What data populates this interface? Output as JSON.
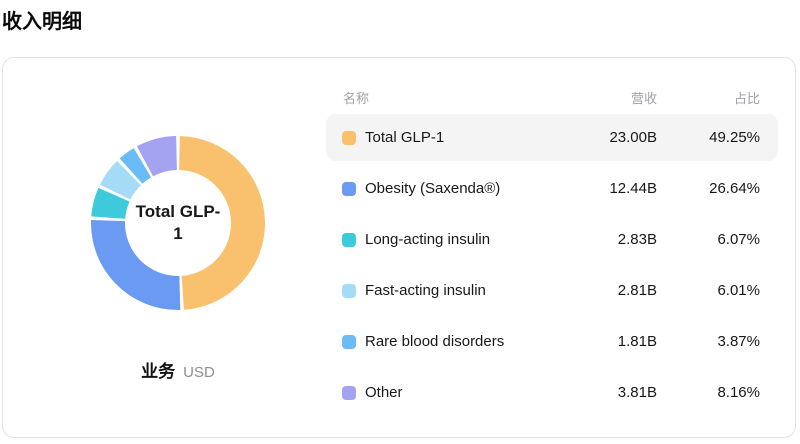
{
  "page": {
    "title": "收入明细"
  },
  "chart": {
    "center_lines": {
      "0": "Total GLP-",
      "1": "1"
    },
    "axis_label": "业务",
    "unit_label": "USD"
  },
  "table": {
    "headers": {
      "name": "名称",
      "revenue": "营收",
      "share": "占比"
    },
    "rows": [
      {
        "name": "Total GLP-1",
        "revenue": "23.00B",
        "share": "49.25%",
        "color": "#F9C16E"
      },
      {
        "name": "Obesity (Saxenda®)",
        "revenue": "12.44B",
        "share": "26.64%",
        "color": "#6B9AF2"
      },
      {
        "name": "Long-acting insulin",
        "revenue": "2.83B",
        "share": "6.07%",
        "color": "#3DCBDC"
      },
      {
        "name": "Fast-acting insulin",
        "revenue": "2.81B",
        "share": "6.01%",
        "color": "#A6DBF7"
      },
      {
        "name": "Rare blood disorders",
        "revenue": "1.81B",
        "share": "3.87%",
        "color": "#69BCF6"
      },
      {
        "name": "Other",
        "revenue": "3.81B",
        "share": "8.16%",
        "color": "#A3A3F2"
      }
    ]
  },
  "chart_data": {
    "type": "pie",
    "donut": true,
    "title": "收入明细",
    "center_label": "Total GLP-1",
    "unit": "USD",
    "legend_position": "right-table",
    "categories": [
      "Total GLP-1",
      "Obesity (Saxenda®)",
      "Long-acting insulin",
      "Fast-acting insulin",
      "Rare blood disorders",
      "Other"
    ],
    "values": [
      23.0,
      12.44,
      2.83,
      2.81,
      1.81,
      3.81
    ],
    "percentages": [
      49.25,
      26.64,
      6.07,
      6.01,
      3.87,
      8.16
    ],
    "colors": [
      "#F9C16E",
      "#6B9AF2",
      "#3DCBDC",
      "#A6DBF7",
      "#69BCF6",
      "#A3A3F2"
    ],
    "start_angle_deg": 0,
    "direction": "clockwise",
    "outer_radius": 87,
    "inner_radius": 53
  }
}
